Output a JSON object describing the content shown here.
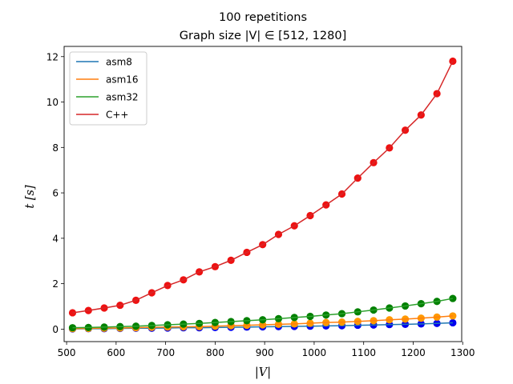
{
  "chart_data": {
    "type": "line",
    "title": "100 repetitions",
    "subtitle": "Graph size |V| ∈ [512, 1280]",
    "xlabel": "|V|",
    "ylabel": "t [s]",
    "xlim": [
      495,
      1298
    ],
    "ylim": [
      -0.55,
      12.45
    ],
    "xticks": [
      500,
      600,
      700,
      800,
      900,
      1000,
      1100,
      1200,
      1300
    ],
    "yticks": [
      0,
      2,
      4,
      6,
      8,
      10,
      12
    ],
    "grid": false,
    "legend_position": "top-left",
    "x": [
      512,
      544,
      576,
      608,
      640,
      672,
      704,
      736,
      768,
      800,
      832,
      864,
      896,
      928,
      960,
      992,
      1024,
      1056,
      1088,
      1120,
      1152,
      1184,
      1216,
      1248,
      1280
    ],
    "series": [
      {
        "name": "asm8",
        "line_color": "#1f77b4",
        "marker_color": "#0000ee",
        "values": [
          0.01,
          0.02,
          0.02,
          0.03,
          0.04,
          0.04,
          0.05,
          0.06,
          0.06,
          0.07,
          0.08,
          0.09,
          0.1,
          0.11,
          0.12,
          0.13,
          0.14,
          0.15,
          0.17,
          0.18,
          0.2,
          0.21,
          0.23,
          0.25,
          0.28
        ]
      },
      {
        "name": "asm16",
        "line_color": "#ff7f0e",
        "marker_color": "#ff9900",
        "values": [
          0.02,
          0.03,
          0.04,
          0.05,
          0.06,
          0.08,
          0.09,
          0.1,
          0.11,
          0.13,
          0.15,
          0.17,
          0.19,
          0.21,
          0.23,
          0.26,
          0.29,
          0.31,
          0.34,
          0.37,
          0.41,
          0.44,
          0.48,
          0.53,
          0.58
        ]
      },
      {
        "name": "asm32",
        "line_color": "#2ca02c",
        "marker_color": "#008000",
        "values": [
          0.06,
          0.07,
          0.09,
          0.11,
          0.13,
          0.16,
          0.19,
          0.22,
          0.25,
          0.29,
          0.33,
          0.37,
          0.41,
          0.46,
          0.51,
          0.56,
          0.62,
          0.68,
          0.76,
          0.84,
          0.93,
          1.02,
          1.12,
          1.22,
          1.35
        ]
      },
      {
        "name": "C++",
        "line_color": "#d62728",
        "marker_color": "#ee1111",
        "values": [
          0.72,
          0.82,
          0.93,
          1.05,
          1.27,
          1.6,
          1.92,
          2.17,
          2.52,
          2.75,
          3.03,
          3.38,
          3.72,
          4.17,
          4.55,
          5.0,
          5.47,
          5.95,
          6.65,
          7.33,
          7.98,
          8.76,
          9.43,
          10.37,
          11.8
        ]
      }
    ]
  }
}
